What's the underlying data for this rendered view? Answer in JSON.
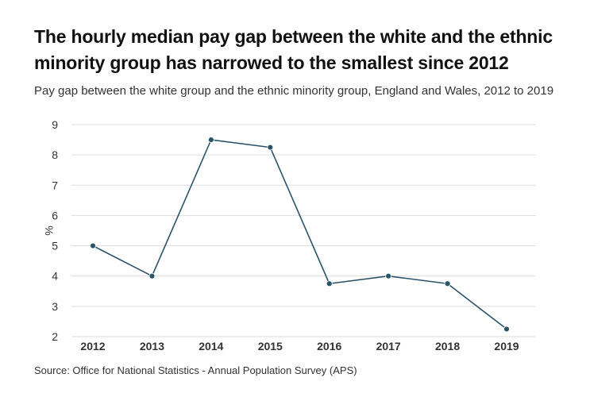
{
  "title": "The hourly median pay gap between the white and the ethnic minority group has narrowed to the smallest since 2012",
  "subtitle": "Pay gap between the white group and the ethnic minority group, England and Wales, 2012 to 2019",
  "source": "Source: Office for National Statistics - Annual Population Survey (APS)",
  "colors": {
    "line": "#2b5468",
    "grid": "#dddddd",
    "axis_text": "#333333"
  },
  "chart_data": {
    "type": "line",
    "title": "The hourly median pay gap between the white and the ethnic minority group has narrowed to the smallest since 2012",
    "subtitle": "Pay gap between the white group and the ethnic minority group, England and Wales, 2012 to 2019",
    "xlabel": "",
    "ylabel": "%",
    "categories": [
      "2012",
      "2013",
      "2014",
      "2015",
      "2016",
      "2017",
      "2018",
      "2019"
    ],
    "series": [
      {
        "values": [
          5.0,
          4.0,
          8.5,
          8.25,
          3.75,
          4.0,
          3.75,
          2.25
        ]
      }
    ],
    "ylim": [
      2,
      9
    ],
    "yticks": [
      2,
      3,
      4,
      5,
      6,
      7,
      8,
      9
    ],
    "grid": true,
    "legend": "none"
  }
}
